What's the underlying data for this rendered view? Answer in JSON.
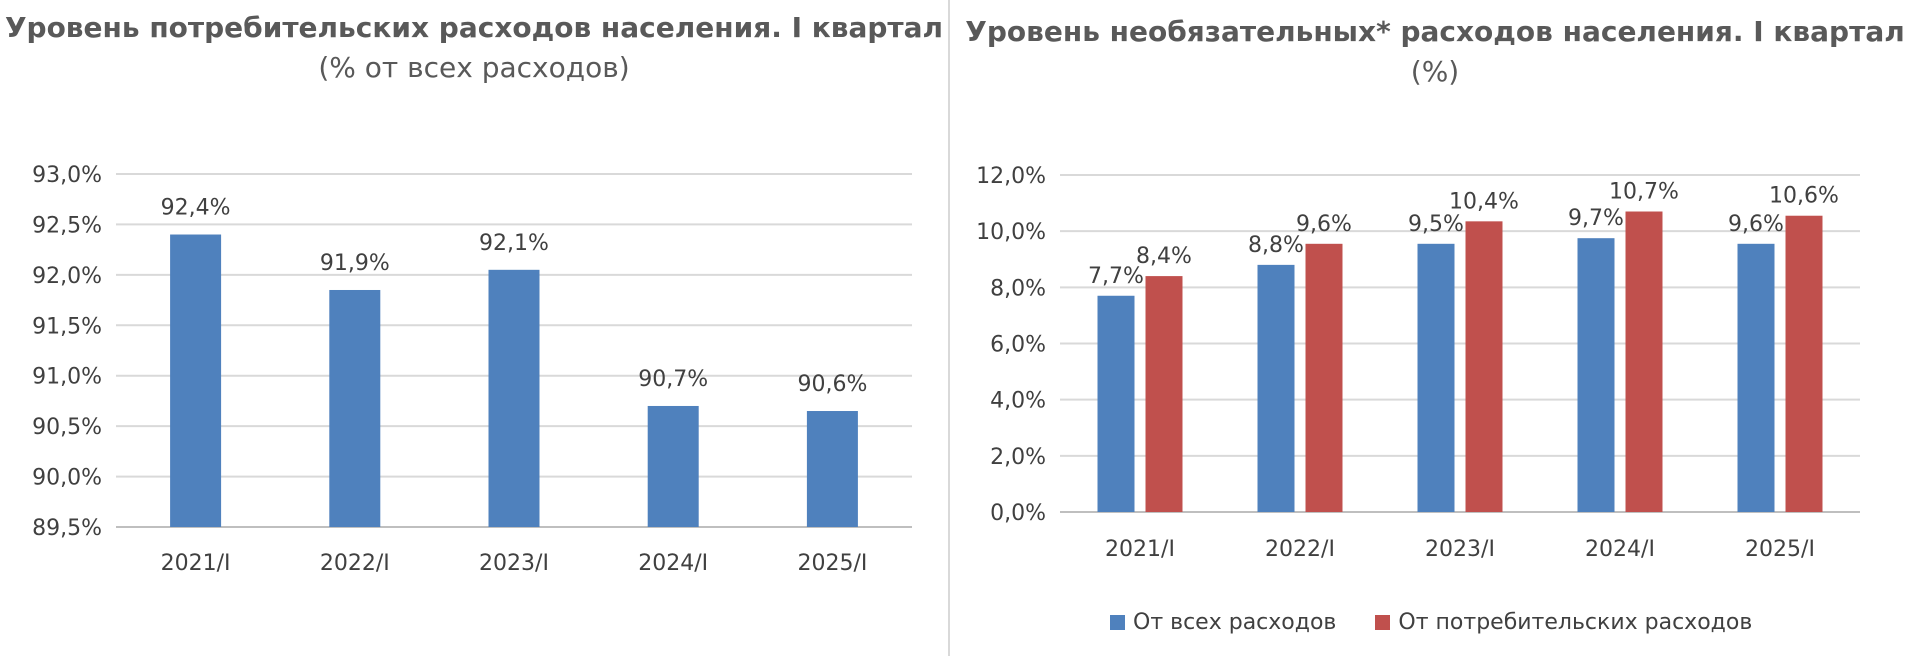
{
  "chart_data": [
    {
      "type": "bar",
      "title_bold": "Уровень потребительских расходов населения. I квартал",
      "title_normal": " (% от всех расходов)",
      "categories": [
        "2021/I",
        "2022/I",
        "2023/I",
        "2024/I",
        "2025/I"
      ],
      "series": [
        {
          "values": [
            92.4,
            91.85,
            92.05,
            90.7,
            90.65
          ],
          "labels": [
            "92,4%",
            "91,9%",
            "92,1%",
            "90,7%",
            "90,6%"
          ],
          "color": "#4f81bd"
        }
      ],
      "ylim": [
        89.5,
        93.0
      ],
      "y_ticks": [
        89.5,
        90.0,
        90.5,
        91.0,
        91.5,
        92.0,
        92.5,
        93.0
      ],
      "y_tick_labels": [
        "89,5%",
        "90,0%",
        "90,5%",
        "91,0%",
        "91,5%",
        "92,0%",
        "92,5%",
        "93,0%"
      ],
      "grid": true,
      "legend": "none"
    },
    {
      "type": "bar",
      "title_bold": "Уровень необязательных* расходов населения. I квартал",
      "title_normal": " (%)",
      "categories": [
        "2021/I",
        "2022/I",
        "2023/I",
        "2024/I",
        "2025/I"
      ],
      "series": [
        {
          "name": "От всех расходов",
          "values": [
            7.7,
            8.8,
            9.55,
            9.75,
            9.55
          ],
          "labels": [
            "7,7%",
            "8,8%",
            "9,5%",
            "9,7%",
            "9,6%"
          ],
          "color": "#4f81bd"
        },
        {
          "name": "От потребительских расходов",
          "values": [
            8.4,
            9.55,
            10.35,
            10.7,
            10.55
          ],
          "labels": [
            "8,4%",
            "9,6%",
            "10,4%",
            "10,7%",
            "10,6%"
          ],
          "color": "#c0504d"
        }
      ],
      "ylim": [
        0,
        12
      ],
      "y_ticks": [
        0,
        2,
        4,
        6,
        8,
        10,
        12
      ],
      "y_tick_labels": [
        "0,0%",
        "2,0%",
        "4,0%",
        "6,0%",
        "8,0%",
        "10,0%",
        "12,0%"
      ],
      "grid": true,
      "legend": "bottom"
    }
  ]
}
